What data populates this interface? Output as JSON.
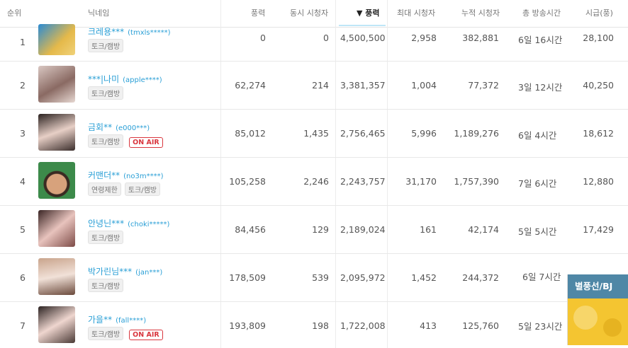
{
  "header": {
    "rank": "순위",
    "nickname": "닉네임",
    "balloon_recv": "풍력",
    "concurrent": "동시 시청자",
    "balloon_sorted": "▼ 풍력",
    "max_viewers": "최대 시청자",
    "total_viewers": "누적 시청자",
    "total_time": "총 방송시간",
    "hourly": "시급(풍)"
  },
  "rows": [
    {
      "rank": "1",
      "nick": "크레용***",
      "id": "(tmxls*****)",
      "tags": [
        "토크/캠방"
      ],
      "onair": "",
      "c1": "0",
      "c2": "0",
      "c3": "4,500,500",
      "c4": "2,958",
      "c5": "382,881",
      "c6": "6일 16시간",
      "c7": "28,100"
    },
    {
      "rank": "2",
      "nick": "***|나미",
      "id": "(apple****)",
      "tags": [
        "토크/캠방"
      ],
      "onair": "",
      "c1": "62,274",
      "c2": "214",
      "c3": "3,381,357",
      "c4": "1,004",
      "c5": "77,372",
      "c6": "3일 12시간",
      "c7": "40,250"
    },
    {
      "rank": "3",
      "nick": "금회**",
      "id": "(e000***)",
      "tags": [
        "토크/캠방"
      ],
      "onair": "ON AIR",
      "c1": "85,012",
      "c2": "1,435",
      "c3": "2,756,465",
      "c4": "5,996",
      "c5": "1,189,276",
      "c6": "6일 4시간",
      "c7": "18,612"
    },
    {
      "rank": "4",
      "nick": "커맨더**",
      "id": "(no3m****)",
      "tags": [
        "연령제한",
        "토크/캠방"
      ],
      "onair": "",
      "c1": "105,258",
      "c2": "2,246",
      "c3": "2,243,757",
      "c4": "31,170",
      "c5": "1,757,390",
      "c6": "7일 6시간",
      "c7": "12,880"
    },
    {
      "rank": "5",
      "nick": "안녕닌***",
      "id": "(choki*****)",
      "tags": [
        "토크/캠방"
      ],
      "onair": "",
      "c1": "84,456",
      "c2": "129",
      "c3": "2,189,024",
      "c4": "161",
      "c5": "42,174",
      "c6": "5일 5시간",
      "c7": "17,429"
    },
    {
      "rank": "6",
      "nick": "박가린님***",
      "id": "(jan***)",
      "tags": [
        "토크/캠방"
      ],
      "onair": "",
      "c1": "178,509",
      "c2": "539",
      "c3": "2,095,972",
      "c4": "1,452",
      "c5": "244,372",
      "c6": "6일 7시간",
      "c7": ""
    },
    {
      "rank": "7",
      "nick": "가을**",
      "id": "(fall****)",
      "tags": [
        "토크/캠방"
      ],
      "onair": "ON AIR",
      "c1": "193,809",
      "c2": "198",
      "c3": "1,722,008",
      "c4": "413",
      "c5": "125,760",
      "c6": "5일 23시간",
      "c7": ""
    }
  ],
  "popup": {
    "title": "별풍선/BJ"
  },
  "colors": {
    "link": "#2a9fd6",
    "onair": "#d9363e",
    "popup_bar": "#4f87a6",
    "popup_bg": "#f4c531"
  }
}
